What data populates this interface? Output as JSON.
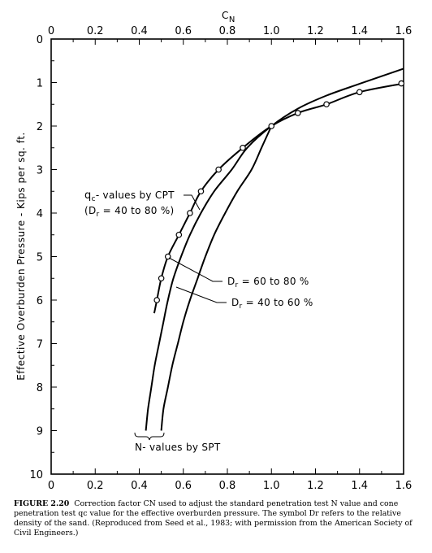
{
  "chart_data": {
    "type": "line",
    "top_axis_label": "C",
    "top_axis_label_sub": "N",
    "ylabel": "Effective Overburden Pressure - Kips per sq. ft.",
    "x_ticks": [
      "0",
      "0.2",
      "0.4",
      "0.6",
      "0.8",
      "1.0",
      "1.2",
      "1.4",
      "1.6"
    ],
    "y_ticks": [
      "0",
      "1",
      "2",
      "3",
      "4",
      "5",
      "6",
      "7",
      "8",
      "9",
      "10"
    ],
    "xlim": [
      0,
      1.6
    ],
    "ylim": [
      0,
      10
    ],
    "y_inverted": true,
    "x_axis_position": "top-and-bottom",
    "series": [
      {
        "name": "qc-values by CPT (Dr = 40 to 80 %)",
        "markers": "open-circle",
        "points": [
          [
            0.468,
            6.3
          ],
          [
            0.48,
            6.0
          ],
          [
            0.5,
            5.5
          ],
          [
            0.53,
            5.0
          ],
          [
            0.58,
            4.5
          ],
          [
            0.63,
            4.0
          ],
          [
            0.68,
            3.5
          ],
          [
            0.76,
            3.0
          ],
          [
            0.87,
            2.5
          ],
          [
            1.0,
            2.0
          ],
          [
            1.12,
            1.7
          ],
          [
            1.25,
            1.5
          ],
          [
            1.4,
            1.22
          ],
          [
            1.6,
            1.02
          ]
        ],
        "marker_points": [
          [
            0.48,
            6.0
          ],
          [
            0.5,
            5.5
          ],
          [
            0.53,
            5.0
          ],
          [
            0.58,
            4.5
          ],
          [
            0.63,
            4.0
          ],
          [
            0.68,
            3.5
          ],
          [
            0.76,
            3.0
          ],
          [
            0.87,
            2.5
          ],
          [
            1.0,
            2.0
          ],
          [
            1.12,
            1.7
          ],
          [
            1.25,
            1.5
          ],
          [
            1.4,
            1.22
          ],
          [
            1.59,
            1.02
          ]
        ]
      },
      {
        "name": "Dr = 60 to 80 %",
        "markers": "none",
        "points": [
          [
            0.43,
            9.0
          ],
          [
            0.44,
            8.5
          ],
          [
            0.455,
            8.0
          ],
          [
            0.47,
            7.5
          ],
          [
            0.49,
            7.0
          ],
          [
            0.51,
            6.5
          ],
          [
            0.53,
            6.0
          ],
          [
            0.555,
            5.5
          ],
          [
            0.59,
            5.0
          ],
          [
            0.63,
            4.5
          ],
          [
            0.68,
            4.0
          ],
          [
            0.74,
            3.5
          ],
          [
            0.82,
            3.0
          ],
          [
            0.89,
            2.5
          ],
          [
            1.0,
            2.0
          ],
          [
            1.12,
            1.6
          ],
          [
            1.25,
            1.3
          ],
          [
            1.4,
            1.03
          ],
          [
            1.6,
            0.68
          ]
        ]
      },
      {
        "name": "Dr = 40 to 60 %",
        "markers": "none",
        "points": [
          [
            0.5,
            9.0
          ],
          [
            0.51,
            8.5
          ],
          [
            0.53,
            8.0
          ],
          [
            0.55,
            7.5
          ],
          [
            0.575,
            7.0
          ],
          [
            0.6,
            6.5
          ],
          [
            0.63,
            6.0
          ],
          [
            0.665,
            5.5
          ],
          [
            0.7,
            5.0
          ],
          [
            0.74,
            4.5
          ],
          [
            0.79,
            4.0
          ],
          [
            0.845,
            3.5
          ],
          [
            0.91,
            3.0
          ],
          [
            0.955,
            2.5
          ],
          [
            1.0,
            2.0
          ]
        ]
      }
    ],
    "annotations": {
      "cpt_line1_main": "q",
      "cpt_line1_sub": "c",
      "cpt_line1_rest": "- values by CPT",
      "cpt_line2_main": "(D",
      "cpt_line2_sub": "r",
      "cpt_line2_rest": " = 40 to 80 %)",
      "dr1_main": "D",
      "dr1_sub": "r",
      "dr1_rest": " = 60 to 80 %",
      "dr2_main": "D",
      "dr2_sub": "r",
      "dr2_rest": " = 40 to 60 %",
      "spt": "N- values by SPT"
    }
  },
  "caption": {
    "figure_label": "FIGURE 2.20",
    "text": "Correction factor CN used to adjust the standard penetration test N value and cone penetration test qc value for the effective overburden pressure. The symbol Dr refers to the relative density of the sand. (Reproduced from Seed et al., 1983; with permission from the American Society of Civil Engineers.)"
  }
}
